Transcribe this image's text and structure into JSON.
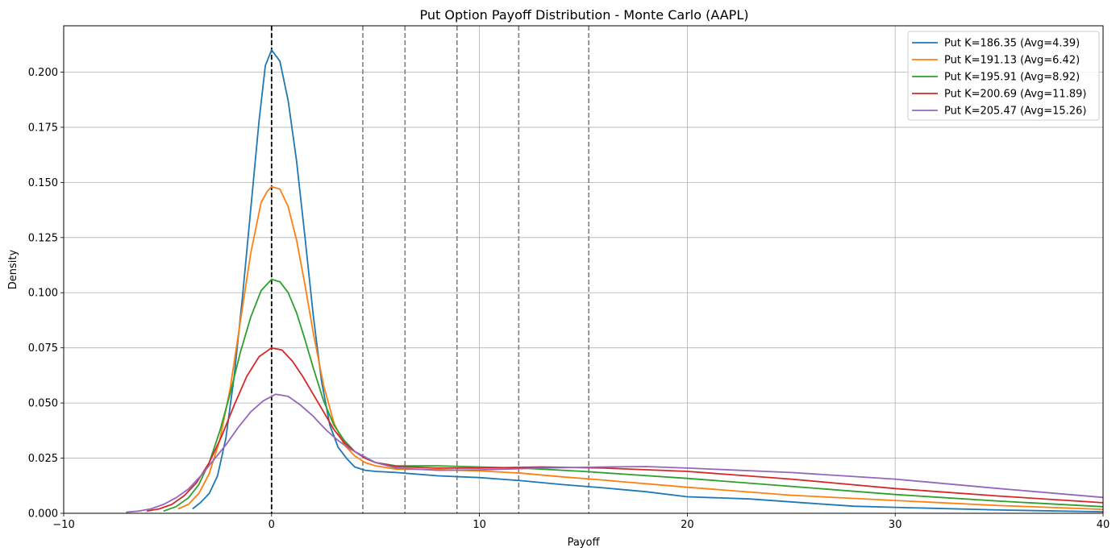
{
  "chart_data": {
    "type": "line",
    "title": "Put Option Payoff Distribution - Monte Carlo (AAPL)",
    "xlabel": "Payoff",
    "ylabel": "Density",
    "xlim": [
      -10,
      40
    ],
    "ylim": [
      0,
      0.221
    ],
    "xticks": [
      -10,
      0,
      10,
      20,
      30,
      40
    ],
    "xtick_labels": [
      "−10",
      "0",
      "10",
      "20",
      "30",
      "40"
    ],
    "yticks": [
      0.0,
      0.025,
      0.05,
      0.075,
      0.1,
      0.125,
      0.15,
      0.175,
      0.2
    ],
    "ytick_labels": [
      "0.000",
      "0.025",
      "0.050",
      "0.075",
      "0.100",
      "0.125",
      "0.150",
      "0.175",
      "0.200"
    ],
    "grid": true,
    "legend_position": "top-right",
    "zero_line": 0,
    "mean_lines": [
      4.39,
      6.42,
      8.92,
      11.89,
      15.26
    ],
    "series": [
      {
        "name": "Put K=186.35 (Avg=4.39)",
        "color": "#1f77b4",
        "x": [
          -3.8,
          -3.4,
          -3.0,
          -2.6,
          -2.2,
          -1.8,
          -1.4,
          -1.0,
          -0.6,
          -0.3,
          0.0,
          0.4,
          0.8,
          1.2,
          1.6,
          2.0,
          2.4,
          2.8,
          3.2,
          3.6,
          4.0,
          4.5,
          5.0,
          6.0,
          8.0,
          10.0,
          12.0,
          14.0,
          16.0,
          18.0,
          20.0,
          23.0,
          26.0,
          28.0,
          30.0,
          35.0,
          40.0
        ],
        "y": [
          0.002,
          0.005,
          0.009,
          0.017,
          0.034,
          0.062,
          0.098,
          0.138,
          0.178,
          0.203,
          0.21,
          0.205,
          0.187,
          0.16,
          0.126,
          0.09,
          0.06,
          0.04,
          0.03,
          0.025,
          0.021,
          0.0195,
          0.019,
          0.0185,
          0.017,
          0.0162,
          0.0148,
          0.013,
          0.0115,
          0.0098,
          0.0075,
          0.0065,
          0.0045,
          0.0032,
          0.0027,
          0.0015,
          0.0007
        ]
      },
      {
        "name": "Put K=191.13 (Avg=6.42)",
        "color": "#ff7f0e",
        "x": [
          -4.5,
          -4.0,
          -3.5,
          -3.0,
          -2.5,
          -2.0,
          -1.5,
          -1.0,
          -0.5,
          -0.2,
          0.0,
          0.4,
          0.8,
          1.2,
          1.6,
          2.0,
          2.5,
          3.0,
          3.5,
          4.0,
          4.5,
          5.0,
          6.0,
          8.0,
          10.0,
          12.0,
          14.0,
          16.0,
          20.0,
          25.0,
          30.0,
          35.0,
          40.0
        ],
        "y": [
          0.002,
          0.004,
          0.009,
          0.018,
          0.033,
          0.056,
          0.087,
          0.118,
          0.141,
          0.146,
          0.148,
          0.147,
          0.139,
          0.124,
          0.104,
          0.082,
          0.058,
          0.041,
          0.031,
          0.026,
          0.023,
          0.0215,
          0.02,
          0.0198,
          0.0192,
          0.0182,
          0.0165,
          0.015,
          0.0118,
          0.0082,
          0.0058,
          0.0035,
          0.0018
        ]
      },
      {
        "name": "Put K=195.91 (Avg=8.92)",
        "color": "#2ca02c",
        "x": [
          -5.2,
          -4.6,
          -4.0,
          -3.5,
          -3.0,
          -2.5,
          -2.0,
          -1.5,
          -1.0,
          -0.5,
          0.0,
          0.4,
          0.8,
          1.2,
          1.6,
          2.0,
          2.5,
          3.0,
          3.5,
          4.0,
          4.5,
          5.0,
          6.0,
          8.0,
          10.0,
          12.0,
          15.0,
          20.0,
          25.0,
          30.0,
          35.0,
          40.0
        ],
        "y": [
          0.001,
          0.003,
          0.007,
          0.013,
          0.023,
          0.037,
          0.054,
          0.073,
          0.089,
          0.101,
          0.106,
          0.105,
          0.1,
          0.091,
          0.079,
          0.066,
          0.051,
          0.04,
          0.033,
          0.028,
          0.025,
          0.023,
          0.0215,
          0.0215,
          0.021,
          0.0205,
          0.019,
          0.0158,
          0.0122,
          0.0085,
          0.0055,
          0.003
        ]
      },
      {
        "name": "Put K=200.69 (Avg=11.89)",
        "color": "#d62728",
        "x": [
          -6.0,
          -5.4,
          -4.8,
          -4.2,
          -3.6,
          -3.0,
          -2.4,
          -1.8,
          -1.2,
          -0.6,
          0.0,
          0.5,
          1.0,
          1.5,
          2.0,
          2.5,
          3.0,
          3.5,
          4.0,
          4.5,
          5.0,
          6.0,
          8.0,
          10.0,
          13.0,
          16.0,
          20.0,
          25.0,
          30.0,
          35.0,
          40.0
        ],
        "y": [
          0.001,
          0.002,
          0.004,
          0.008,
          0.014,
          0.023,
          0.035,
          0.049,
          0.062,
          0.071,
          0.075,
          0.074,
          0.069,
          0.062,
          0.054,
          0.046,
          0.038,
          0.032,
          0.028,
          0.025,
          0.023,
          0.0212,
          0.0205,
          0.0205,
          0.021,
          0.0205,
          0.019,
          0.0155,
          0.0112,
          0.0078,
          0.0048
        ]
      },
      {
        "name": "Put K=205.47 (Avg=15.26)",
        "color": "#9467bd",
        "x": [
          -7.0,
          -6.4,
          -5.8,
          -5.2,
          -4.6,
          -4.0,
          -3.4,
          -2.8,
          -2.2,
          -1.6,
          -1.0,
          -0.4,
          0.2,
          0.8,
          1.4,
          2.0,
          2.6,
          3.2,
          3.8,
          4.4,
          5.0,
          6.0,
          8.0,
          10.0,
          13.0,
          16.0,
          18.0,
          20.0,
          25.0,
          30.0,
          35.0,
          40.0
        ],
        "y": [
          0.0005,
          0.001,
          0.002,
          0.004,
          0.007,
          0.011,
          0.017,
          0.024,
          0.031,
          0.039,
          0.046,
          0.051,
          0.054,
          0.053,
          0.049,
          0.044,
          0.038,
          0.033,
          0.029,
          0.026,
          0.023,
          0.0205,
          0.0195,
          0.0197,
          0.0205,
          0.021,
          0.0212,
          0.0205,
          0.0185,
          0.0155,
          0.0112,
          0.0072
        ]
      }
    ]
  }
}
